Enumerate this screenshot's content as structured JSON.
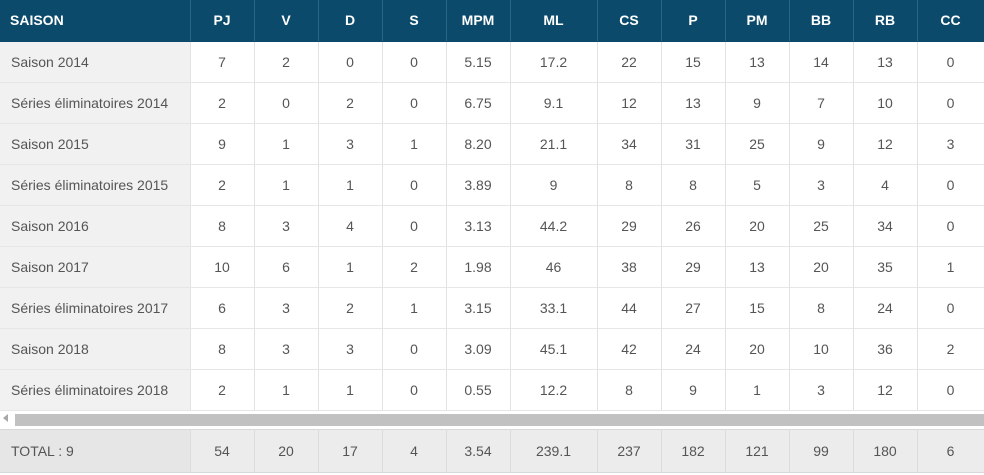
{
  "headers": [
    "SAISON",
    "PJ",
    "V",
    "D",
    "S",
    "MPM",
    "ML",
    "CS",
    "P",
    "PM",
    "BB",
    "RB",
    "CC"
  ],
  "rows": [
    [
      "Saison 2014",
      "7",
      "2",
      "0",
      "0",
      "5.15",
      "17.2",
      "22",
      "15",
      "13",
      "14",
      "13",
      "0"
    ],
    [
      "Séries éliminatoires 2014",
      "2",
      "0",
      "2",
      "0",
      "6.75",
      "9.1",
      "12",
      "13",
      "9",
      "7",
      "10",
      "0"
    ],
    [
      "Saison 2015",
      "9",
      "1",
      "3",
      "1",
      "8.20",
      "21.1",
      "34",
      "31",
      "25",
      "9",
      "12",
      "3"
    ],
    [
      "Séries éliminatoires 2015",
      "2",
      "1",
      "1",
      "0",
      "3.89",
      "9",
      "8",
      "8",
      "5",
      "3",
      "4",
      "0"
    ],
    [
      "Saison 2016",
      "8",
      "3",
      "4",
      "0",
      "3.13",
      "44.2",
      "29",
      "26",
      "20",
      "25",
      "34",
      "0"
    ],
    [
      "Saison 2017",
      "10",
      "6",
      "1",
      "2",
      "1.98",
      "46",
      "38",
      "29",
      "13",
      "20",
      "35",
      "1"
    ],
    [
      "Séries éliminatoires 2017",
      "6",
      "3",
      "2",
      "1",
      "3.15",
      "33.1",
      "44",
      "27",
      "15",
      "8",
      "24",
      "0"
    ],
    [
      "Saison 2018",
      "8",
      "3",
      "3",
      "0",
      "3.09",
      "45.1",
      "42",
      "24",
      "20",
      "10",
      "36",
      "2"
    ],
    [
      "Séries éliminatoires 2018",
      "2",
      "1",
      "1",
      "0",
      "0.55",
      "12.2",
      "8",
      "9",
      "1",
      "3",
      "12",
      "0"
    ]
  ],
  "total": [
    "TOTAL : 9",
    "54",
    "20",
    "17",
    "4",
    "3.54",
    "239.1",
    "237",
    "182",
    "121",
    "99",
    "180",
    "6"
  ],
  "colors": {
    "header_bg": "#0b4a6b",
    "header_text": "#ffffff",
    "first_col_bg": "#f1f1f1",
    "total_bg": "#ececec"
  },
  "icons": {
    "scroll_left": "scroll-left-arrow-icon"
  }
}
